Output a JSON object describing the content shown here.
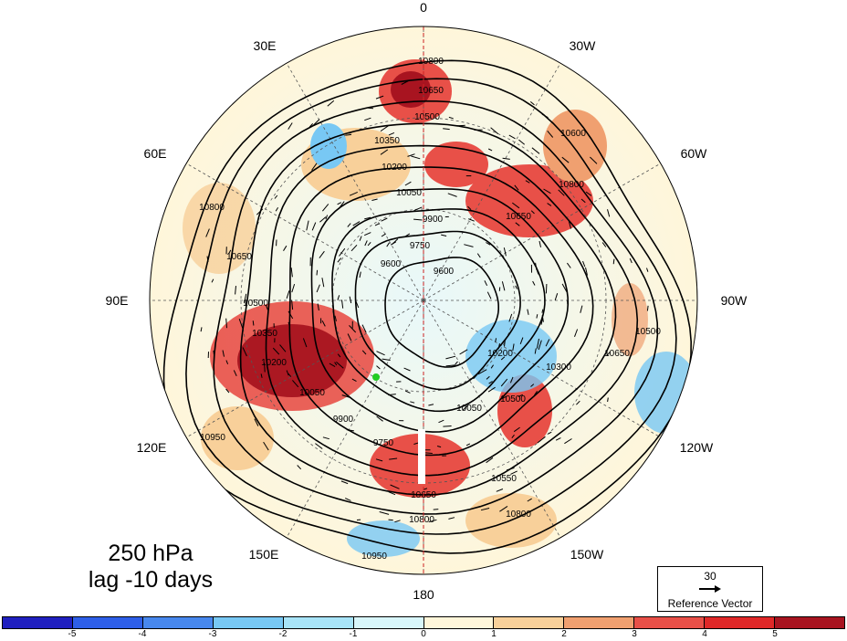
{
  "title": {
    "level": "250 hPa",
    "lag": "lag -10 days"
  },
  "longitude_labels": [
    "0",
    "30W",
    "60W",
    "90W",
    "120W",
    "150W",
    "180",
    "150E",
    "120E",
    "90E",
    "60E",
    "30E"
  ],
  "contour_levels": [
    "10950",
    "10800",
    "10650",
    "10500",
    "10350",
    "10200",
    "10050",
    "9900",
    "9750",
    "9600"
  ],
  "contour_labels": [
    {
      "text": "10800"
    },
    {
      "text": "10650"
    },
    {
      "text": "10500"
    },
    {
      "text": "10350"
    },
    {
      "text": "10200"
    },
    {
      "text": "10050"
    },
    {
      "text": "9900"
    },
    {
      "text": "9750"
    },
    {
      "text": "9600"
    },
    {
      "text": "9600"
    },
    {
      "text": "10950"
    },
    {
      "text": "10800"
    },
    {
      "text": "10650"
    },
    {
      "text": "10500"
    },
    {
      "text": "10350"
    },
    {
      "text": "10200"
    },
    {
      "text": "10050"
    },
    {
      "text": "9900"
    },
    {
      "text": "9750"
    },
    {
      "text": "10600"
    },
    {
      "text": "10800"
    },
    {
      "text": "10650"
    },
    {
      "text": "10500"
    },
    {
      "text": "10200"
    },
    {
      "text": "10050"
    },
    {
      "text": "10950"
    },
    {
      "text": "10650"
    },
    {
      "text": "10800"
    },
    {
      "text": "10550"
    },
    {
      "text": "10800"
    },
    {
      "text": "10650"
    },
    {
      "text": "10500"
    },
    {
      "text": "10300"
    },
    {
      "text": "10950"
    }
  ],
  "reference_vector": {
    "value": "30",
    "label": "Reference Vector"
  },
  "colorbar": {
    "colors": [
      "#2020c0",
      "#2e5fe8",
      "#4888ee",
      "#78c8f4",
      "#a8e4f8",
      "#d8f6fa",
      "#fff6da",
      "#f8d09a",
      "#f0a070",
      "#e85048",
      "#e02828",
      "#a81420"
    ],
    "labels": [
      "-5",
      "-4",
      "-3",
      "-2",
      "-1",
      "0",
      "1",
      "2",
      "3",
      "4",
      "5"
    ]
  },
  "marker_color": "#22cc22"
}
